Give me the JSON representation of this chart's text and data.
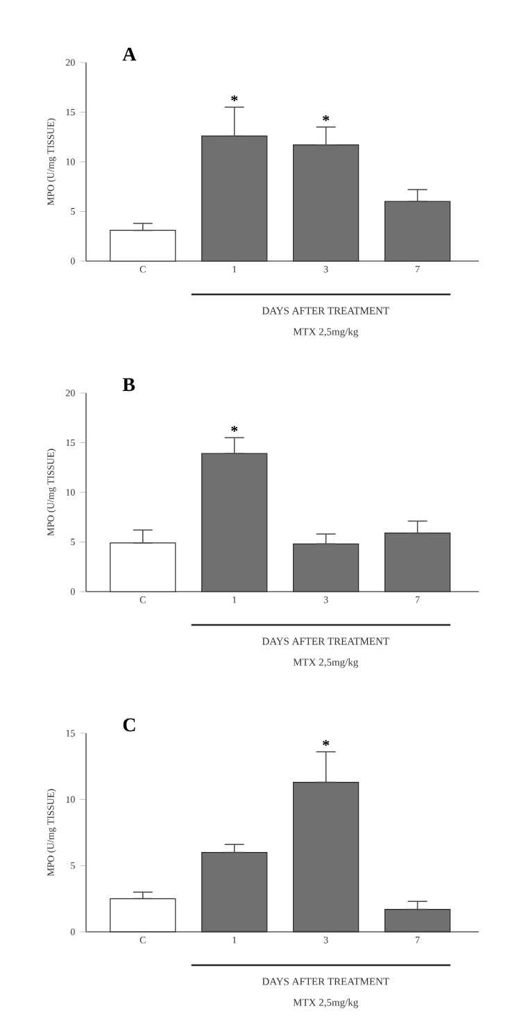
{
  "chart_data": [
    {
      "type": "bar",
      "title": "A",
      "ylabel": "MPO (U/mg TISSUE)",
      "xlabel": "DAYS AFTER TREATMENT",
      "categories": [
        "C",
        "1",
        "3",
        "7"
      ],
      "values": [
        3.1,
        12.6,
        11.7,
        6.0
      ],
      "colors": [
        "#ffffff",
        "#707070",
        "#707070",
        "#707070"
      ],
      "errors": [
        [
          3.1,
          3.8
        ],
        [
          12.6,
          15.5
        ],
        [
          11.7,
          13.5
        ],
        [
          6.0,
          7.2
        ]
      ],
      "ylim": [
        0,
        20
      ],
      "yticks": [
        0,
        5,
        10,
        15,
        20
      ],
      "annotations": [
        {
          "text": "*",
          "x": "1",
          "y": 15.5
        },
        {
          "text": "*",
          "x": "3",
          "y": 13.5
        },
        "MTX 2,5mg/kg"
      ]
    },
    {
      "type": "bar",
      "title": "B",
      "ylabel": "MPO (U/mg TISSUE)",
      "xlabel": "DAYS AFTER TREATMENT",
      "categories": [
        "C",
        "1",
        "3",
        "7"
      ],
      "values": [
        4.9,
        13.9,
        4.8,
        5.9
      ],
      "colors": [
        "#ffffff",
        "#707070",
        "#707070",
        "#707070"
      ],
      "errors": [
        [
          4.9,
          6.2
        ],
        [
          13.9,
          15.5
        ],
        [
          4.8,
          5.8
        ],
        [
          5.9,
          7.1
        ]
      ],
      "ylim": [
        0,
        20
      ],
      "yticks": [
        0,
        5,
        10,
        15,
        20
      ],
      "annotations": [
        {
          "text": "*",
          "x": "1",
          "y": 15.5
        },
        "MTX 2,5mg/kg"
      ]
    },
    {
      "type": "bar",
      "title": "C",
      "ylabel": "MPO (U/mg TISSUE)",
      "xlabel": "DAYS AFTER TREATMENT",
      "categories": [
        "C",
        "1",
        "3",
        "7"
      ],
      "values": [
        2.5,
        6.0,
        11.3,
        1.7
      ],
      "colors": [
        "#ffffff",
        "#707070",
        "#707070",
        "#707070"
      ],
      "errors": [
        [
          2.5,
          3.0
        ],
        [
          6.0,
          6.6
        ],
        [
          11.3,
          13.6
        ],
        [
          1.7,
          2.3
        ]
      ],
      "ylim": [
        0,
        15
      ],
      "yticks": [
        0,
        5,
        10,
        15
      ],
      "annotations": [
        {
          "text": "*",
          "x": "3",
          "y": 13.6
        },
        "MTX 2,5mg/kg"
      ]
    }
  ]
}
